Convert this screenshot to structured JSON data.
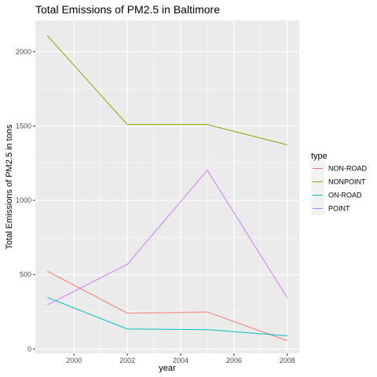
{
  "chart_data": {
    "type": "line",
    "title": "Total Emissions of PM2.5 in Baltimore",
    "xlabel": "year",
    "ylabel": "Total Emissions of PM2.5 in tons",
    "x": [
      1999,
      2002,
      2005,
      2008
    ],
    "xlim": [
      1998.55,
      2008.45
    ],
    "ylim": [
      -30,
      2210
    ],
    "x_ticks": [
      2000,
      2002,
      2004,
      2006,
      2008
    ],
    "y_ticks": [
      0,
      500,
      1000,
      1500,
      2000
    ],
    "x_tick_labels": [
      "2000",
      "2002",
      "2004",
      "2006",
      "2008"
    ],
    "y_tick_labels": [
      "0",
      "500",
      "1000",
      "1500",
      "2000"
    ],
    "grid": true,
    "legend": {
      "title": "type",
      "position": "right"
    },
    "series": [
      {
        "name": "NON-ROAD",
        "color": "#F8766D",
        "values": [
          522.9,
          240.8,
          248.9,
          55.8
        ]
      },
      {
        "name": "NONPOINT",
        "color": "#7CAE00",
        "values": [
          2107.6,
          1509.5,
          1509.5,
          1373.2
        ]
      },
      {
        "name": "ON-ROAD",
        "color": "#00BFC4",
        "values": [
          346.8,
          134.3,
          130.4,
          88.3
        ]
      },
      {
        "name": "POINT",
        "color": "#C77CFF",
        "values": [
          296.8,
          569.3,
          1202.5,
          344.98
        ]
      }
    ]
  }
}
